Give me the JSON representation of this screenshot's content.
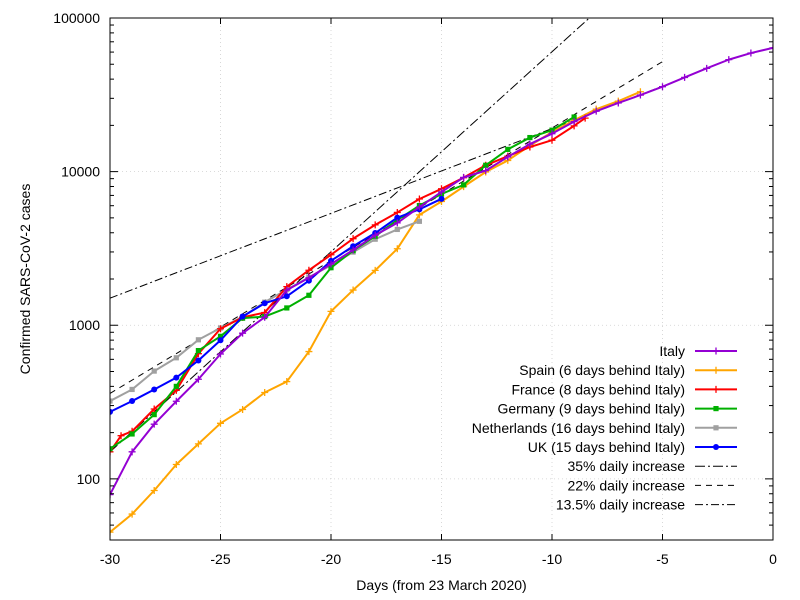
{
  "chart_data": {
    "type": "line",
    "title": "",
    "xlabel": "Days (from 23 March 2020)",
    "ylabel": "Confirmed SARS-CoV-2 cases",
    "xlim": [
      -30,
      0
    ],
    "ylim": [
      40,
      100000
    ],
    "yscale": "log",
    "grid": true,
    "legend_position": "bottom-right",
    "x_ticks": [
      -30,
      -25,
      -20,
      -15,
      -10,
      -5,
      0
    ],
    "x_tick_labels": [
      "-30",
      "-25",
      "-20",
      "-15",
      "-10",
      "-5",
      "0"
    ],
    "y_ticks": [
      100,
      1000,
      10000,
      100000
    ],
    "y_tick_labels": [
      "100",
      "1000",
      "10000",
      "100000"
    ],
    "series": [
      {
        "name": "Italy",
        "color": "#9400d3",
        "marker": "plus",
        "style": "solid",
        "x": [
          -30,
          -29,
          -28,
          -27,
          -26,
          -25,
          -24,
          -23,
          -22,
          -21,
          -20,
          -19,
          -18,
          -17,
          -16,
          -15,
          -14,
          -13,
          -12,
          -11,
          -10,
          -9,
          -8,
          -7,
          -6,
          -5,
          -4,
          -3,
          -2,
          -1,
          0
        ],
        "y": [
          79,
          150,
          227,
          320,
          445,
          650,
          888,
          1128,
          1694,
          2036,
          2502,
          3089,
          3858,
          4636,
          5883,
          7375,
          9172,
          10149,
          12462,
          15113,
          17660,
          21157,
          24747,
          27980,
          31506,
          35713,
          41035,
          47021,
          53578,
          59138,
          63927
        ]
      },
      {
        "name": "Spain (6 days behind Italy)",
        "color": "#ffa500",
        "marker": "plus",
        "style": "solid",
        "x": [
          -30,
          -29,
          -28,
          -27,
          -26,
          -25,
          -24,
          -23,
          -22,
          -21,
          -20,
          -19,
          -18,
          -17,
          -16,
          -15,
          -14,
          -13,
          -12,
          -11,
          -10,
          -9,
          -8,
          -7,
          -6
        ],
        "y": [
          45,
          59,
          84,
          124,
          169,
          230,
          283,
          365,
          430,
          674,
          1231,
          1695,
          2277,
          3146,
          5232,
          6391,
          7988,
          9942,
          11826,
          14769,
          18077,
          21571,
          25496,
          28768,
          33089
        ]
      },
      {
        "name": "France (8 days behind Italy)",
        "color": "#ff0000",
        "marker": "plus",
        "style": "solid",
        "x": [
          -30,
          -29.5,
          -29,
          -28,
          -27,
          -26,
          -25,
          -24,
          -23,
          -22,
          -21,
          -20,
          -19,
          -18,
          -17,
          -16,
          -15,
          -14,
          -13,
          -12,
          -11,
          -10,
          -9,
          -8.5
        ],
        "y": [
          150,
          191,
          204,
          285,
          377,
          653,
          949,
          1126,
          1209,
          1784,
          2281,
          2876,
          3661,
          4499,
          5423,
          6633,
          7730,
          9134,
          10995,
          12612,
          14459,
          16018,
          19856,
          22304
        ]
      },
      {
        "name": "Germany (9 days behind Italy)",
        "color": "#00b000",
        "marker": "square",
        "style": "solid",
        "x": [
          -30,
          -29,
          -28,
          -27,
          -26,
          -25,
          -24,
          -23,
          -22,
          -21,
          -20,
          -19,
          -18,
          -17,
          -16,
          -15,
          -14,
          -13,
          -12,
          -11,
          -10,
          -9
        ],
        "y": [
          157,
          196,
          262,
          400,
          684,
          847,
          1112,
          1139,
          1296,
          1567,
          2369,
          3062,
          3795,
          4838,
          6012,
          7156,
          8198,
          10999,
          13957,
          16662,
          18610,
          22672
        ]
      },
      {
        "name": "Netherlands (16 days behind Italy)",
        "color": "#a0a0a0",
        "marker": "square",
        "style": "solid",
        "x": [
          -30,
          -29,
          -28,
          -27,
          -26,
          -25,
          -24,
          -23,
          -22,
          -21,
          -20,
          -19,
          -18,
          -17,
          -16
        ],
        "y": [
          321,
          382,
          503,
          614,
          804,
          959,
          1135,
          1413,
          1705,
          2051,
          2460,
          2994,
          3631,
          4204,
          4749
        ]
      },
      {
        "name": "UK (15 days behind Italy)",
        "color": "#0000ff",
        "marker": "circle",
        "style": "solid",
        "x": [
          -30,
          -29,
          -28,
          -27,
          -26,
          -25,
          -24,
          -23,
          -22,
          -21,
          -20,
          -19,
          -18,
          -17,
          -16,
          -15
        ],
        "y": [
          273,
          321,
          382,
          456,
          590,
          798,
          1140,
          1391,
          1543,
          1950,
          2626,
          3269,
          3983,
          5018,
          5683,
          6650
        ]
      },
      {
        "name": "35% daily increase",
        "color": "#000000",
        "marker": "none",
        "style": "dashdot-long",
        "x": [
          -30,
          -5
        ],
        "y": [
          150,
          270000
        ]
      },
      {
        "name": "22% daily increase",
        "color": "#000000",
        "marker": "none",
        "style": "dashed",
        "x": [
          -30,
          -5
        ],
        "y": [
          360,
          52000
        ]
      },
      {
        "name": "13.5% daily increase",
        "color": "#000000",
        "marker": "none",
        "style": "dashdot",
        "x": [
          -30,
          -5
        ],
        "y": [
          1500,
          36000
        ]
      }
    ]
  }
}
